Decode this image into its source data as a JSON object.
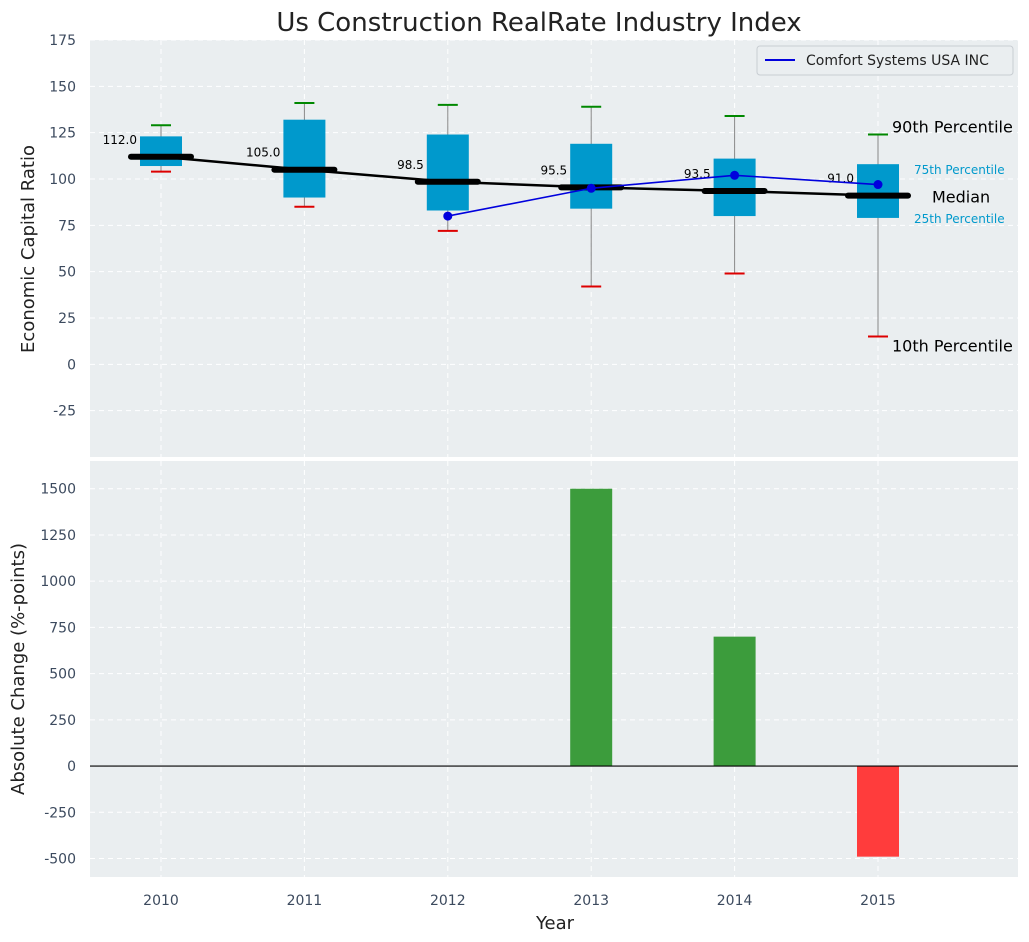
{
  "chart_data": [
    {
      "type": "box",
      "title": "Us Construction RealRate Industry Index",
      "ylabel": "Economic Capital Ratio",
      "ylim": [
        -50,
        175
      ],
      "yticks": [
        -25,
        0,
        25,
        50,
        75,
        100,
        125,
        150,
        175
      ],
      "categories": [
        "2010",
        "2011",
        "2012",
        "2013",
        "2014",
        "2015"
      ],
      "percentiles": [
        {
          "year": "2010",
          "p10": 104,
          "p25": 107,
          "median": 112.0,
          "p75": 123,
          "p90": 129
        },
        {
          "year": "2011",
          "p10": 85,
          "p25": 90,
          "median": 105.0,
          "p75": 132,
          "p90": 141
        },
        {
          "year": "2012",
          "p10": 72,
          "p25": 83,
          "median": 98.5,
          "p75": 124,
          "p90": 140
        },
        {
          "year": "2013",
          "p10": 42,
          "p25": 84,
          "median": 95.5,
          "p75": 119,
          "p90": 139
        },
        {
          "year": "2014",
          "p10": 49,
          "p25": 80,
          "median": 93.5,
          "p75": 111,
          "p90": 134
        },
        {
          "year": "2015",
          "p10": 15,
          "p25": 79,
          "median": 91.0,
          "p75": 108,
          "p90": 124
        }
      ],
      "median_labels": [
        "112.0",
        "105.0",
        "98.5",
        "95.5",
        "93.5",
        "91.0"
      ],
      "series": [
        {
          "name": "Comfort Systems USA INC",
          "x": [
            "2012",
            "2013",
            "2014",
            "2015"
          ],
          "values": [
            80,
            95,
            102,
            97
          ]
        }
      ],
      "legend": {
        "position": "top-right",
        "entries": [
          "Comfort Systems USA INC"
        ]
      },
      "annotations": {
        "p90": "90th Percentile",
        "p75": "75th Percentile",
        "median": "Median",
        "p25": "25th Percentile",
        "p10": "10th Percentile"
      }
    },
    {
      "type": "bar",
      "ylabel": "Absolute Change (%-points)",
      "xlabel": "Year",
      "ylim": [
        -600,
        1650
      ],
      "yticks": [
        -500,
        -250,
        0,
        250,
        500,
        750,
        1000,
        1250,
        1500
      ],
      "categories": [
        "2010",
        "2011",
        "2012",
        "2013",
        "2014",
        "2015"
      ],
      "values": [
        0,
        0,
        0,
        1500,
        700,
        -490
      ]
    }
  ],
  "colors": {
    "box": "#0099cc",
    "median": "#000000",
    "series": "#0000dd",
    "p90_cap": "#008800",
    "p10_cap": "#dd0000",
    "whisker": "#888888",
    "bar_positive": "#3c9c3c",
    "bar_negative": "#ff3c3c",
    "panel_bg": "#eaeef0",
    "annotation_blue": "#0099cc"
  }
}
